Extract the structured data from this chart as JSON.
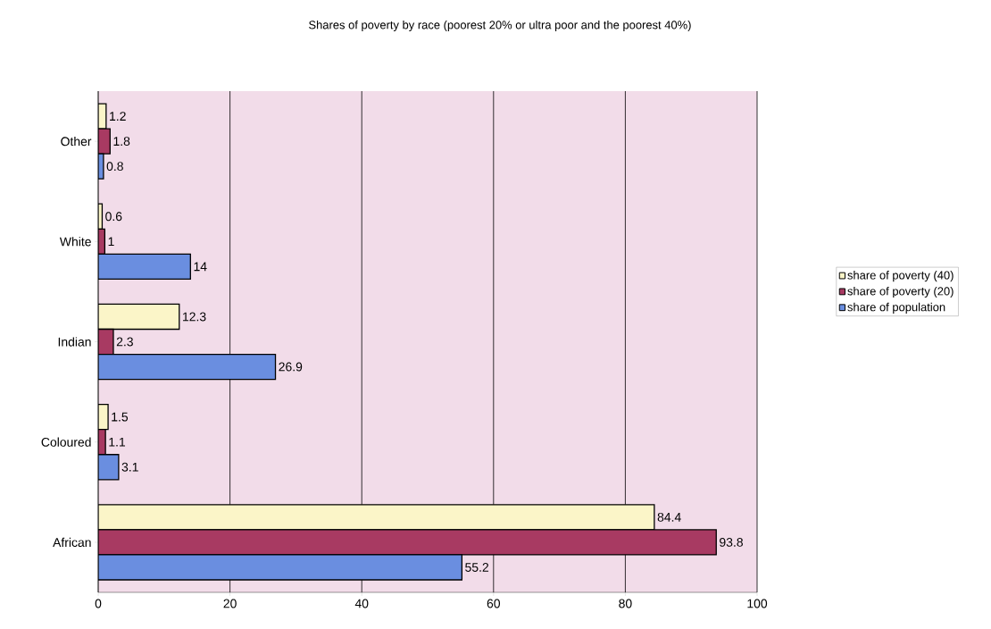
{
  "chart_data": {
    "type": "bar",
    "orientation": "horizontal",
    "title": "Shares of poverty by race (poorest 20% or ultra poor and the poorest 40%)",
    "categories": [
      "Other",
      "White",
      "Indian",
      "Coloured",
      "African"
    ],
    "series": [
      {
        "name": "share of poverty (40)",
        "color": "#fbf5c8",
        "values": [
          1.2,
          0.6,
          12.3,
          1.5,
          84.4
        ],
        "value_labels": [
          "1.2",
          "0.6",
          "12.3",
          "1.5",
          "84.4"
        ]
      },
      {
        "name": "share of poverty (20)",
        "color": "#a83a62",
        "values": [
          1.8,
          1,
          2.3,
          1.1,
          93.8
        ],
        "value_labels": [
          "1.8",
          "1",
          "2.3",
          "1.1",
          "93.8"
        ]
      },
      {
        "name": "share of population",
        "color": "#6a8ee0",
        "values": [
          0.8,
          14,
          26.9,
          3.1,
          55.2
        ],
        "value_labels": [
          "0.8",
          "14",
          "26.9",
          "3.1",
          "55.2"
        ]
      }
    ],
    "xlim": [
      0,
      100
    ],
    "xticks": [
      0,
      20,
      40,
      60,
      80,
      100
    ],
    "grid": "x",
    "legend": "right"
  }
}
